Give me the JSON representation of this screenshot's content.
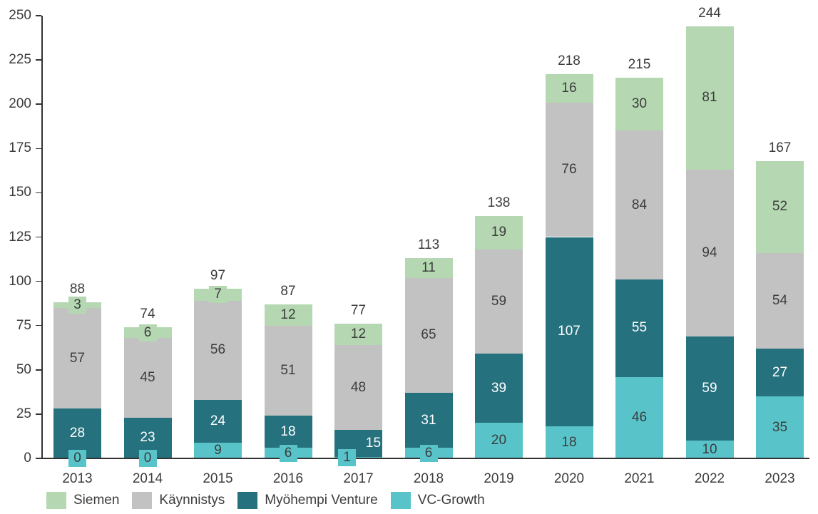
{
  "chart_data": {
    "type": "bar",
    "stacked": true,
    "title": "",
    "xlabel": "",
    "ylabel": "",
    "categories": [
      "2013",
      "2014",
      "2015",
      "2016",
      "2017",
      "2018",
      "2019",
      "2020",
      "2021",
      "2022",
      "2023"
    ],
    "series": [
      {
        "name": "VC-Growth",
        "color": "#58c4ca",
        "text_color": "#3c3c3c",
        "values": [
          0,
          0,
          9,
          6,
          1,
          6,
          20,
          18,
          46,
          10,
          35
        ]
      },
      {
        "name": "Myöhempi Venture",
        "color": "#26717e",
        "text_color": "#ffffff",
        "values": [
          28,
          23,
          24,
          18,
          15,
          31,
          39,
          107,
          55,
          59,
          27
        ]
      },
      {
        "name": "Käynnistys",
        "color": "#c2c2c2",
        "text_color": "#3c3c3c",
        "values": [
          57,
          45,
          56,
          51,
          48,
          65,
          59,
          76,
          84,
          94,
          54
        ]
      },
      {
        "name": "Siemen",
        "color": "#b5d8b2",
        "text_color": "#3c3c3c",
        "values": [
          3,
          6,
          7,
          12,
          12,
          11,
          19,
          16,
          30,
          81,
          52
        ]
      }
    ],
    "totals": [
      88,
      74,
      97,
      87,
      77,
      113,
      138,
      218,
      215,
      244,
      167
    ],
    "ylim": [
      0,
      250
    ],
    "ytick_step": 25,
    "yticks": [
      0,
      25,
      50,
      75,
      100,
      125,
      150,
      175,
      200,
      225,
      250
    ],
    "grid": false,
    "legend_position": "bottom",
    "legend": [
      {
        "label": "Siemen",
        "color": "#b5d8b2"
      },
      {
        "label": "Käynnistys",
        "color": "#c2c2c2"
      },
      {
        "label": "Myöhempi Venture",
        "color": "#26717e"
      },
      {
        "label": "VC-Growth",
        "color": "#58c4ca"
      }
    ],
    "label_overrides": [
      {
        "category": "2017",
        "series": "Myöhempi Venture",
        "dx": 21
      },
      {
        "category": "2017",
        "series": "VC-Growth",
        "dx": -16
      }
    ]
  },
  "colors": {
    "background": "#ffffff",
    "axis": "#333333",
    "text": "#3c3c3c"
  }
}
